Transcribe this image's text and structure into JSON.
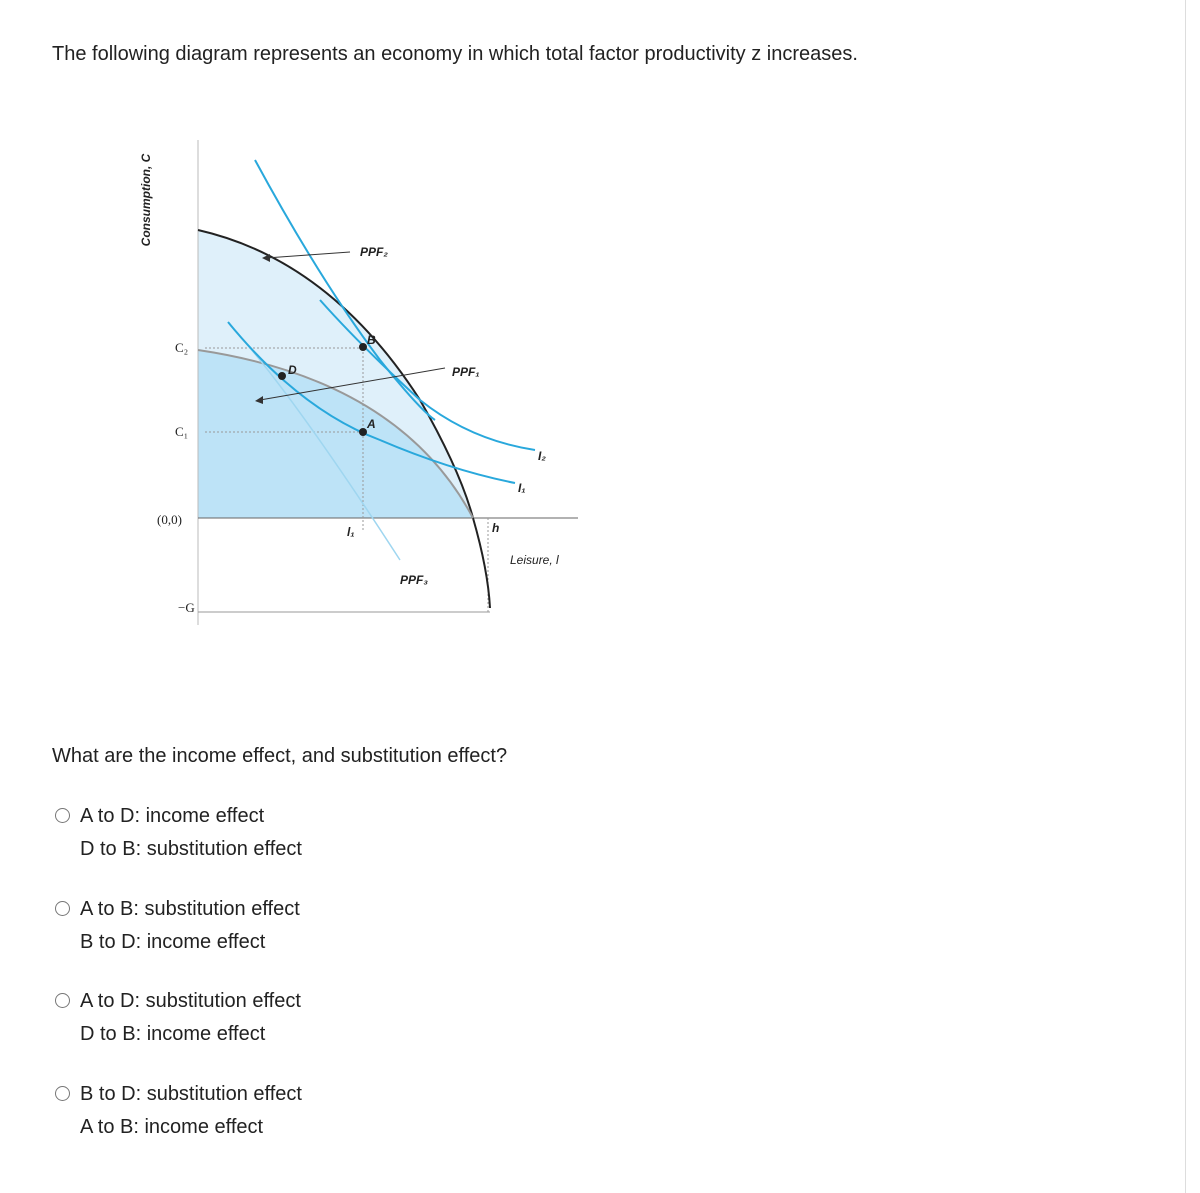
{
  "question": "The following diagram represents an economy in which total factor productivity z increases.",
  "diagram": {
    "y_axis_label": "Consumption, C",
    "x_axis_label": "Leisure, l",
    "c2": "C₂",
    "c1": "C₁",
    "origin": "(0,0)",
    "neg_g": "−G",
    "ppf2": "PPF₂",
    "ppf1": "PPF₁",
    "ppf3": "PPF₃",
    "point_b": "B",
    "point_a": "A",
    "point_d": "D",
    "i2": "I₂",
    "i1": "I₁",
    "l1": "l₁",
    "h": "h"
  },
  "prompt": "What are the income effect, and substitution effect?",
  "options": [
    [
      "A to D: income effect",
      "D to B: substitution effect"
    ],
    [
      "A to B: substitution effect",
      "B to D: income effect"
    ],
    [
      "A to D: substitution effect",
      "D to B: income effect"
    ],
    [
      "B to D: substitution effect",
      "A to B: income effect"
    ]
  ]
}
